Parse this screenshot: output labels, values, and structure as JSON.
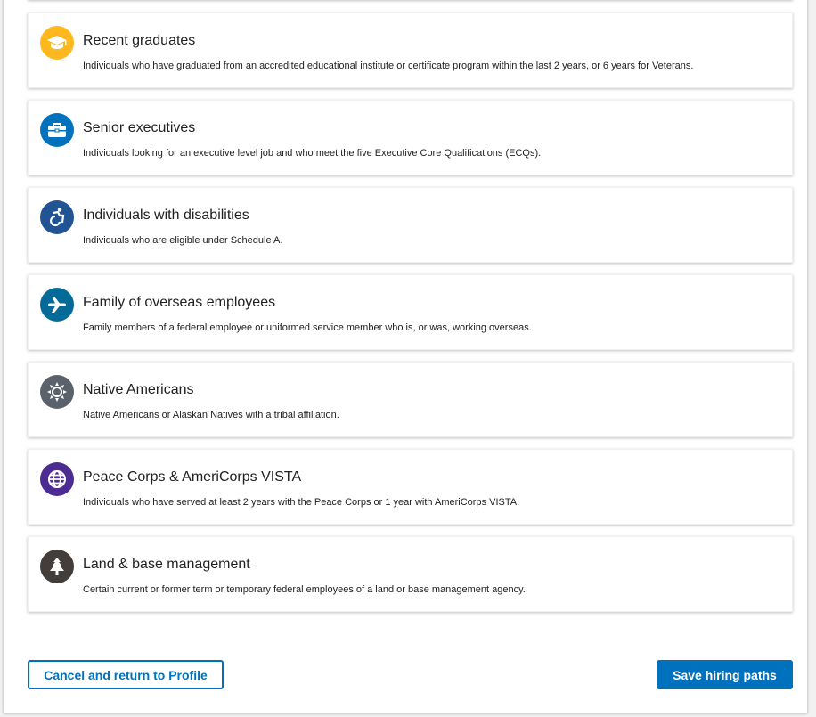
{
  "paths": [
    {
      "title": "Recent graduates",
      "description": "Individuals who have graduated from an accredited educational institute or certificate program within the last 2 years, or 6 years for Veterans.",
      "icon": "graduation-cap-icon",
      "color": "#fdb81e"
    },
    {
      "title": "Senior executives",
      "description": "Individuals looking for an executive level job and who meet the five Executive Core Qualifications (ECQs).",
      "icon": "briefcase-icon",
      "color": "#0071bc"
    },
    {
      "title": "Individuals with disabilities",
      "description": "Individuals who are eligible under Schedule A.",
      "icon": "accessibility-icon",
      "color": "#205493"
    },
    {
      "title": "Family of overseas employees",
      "description": "Family members of a federal employee or uniformed service member who is, or was, working overseas.",
      "icon": "airplane-icon",
      "color": "#046b99"
    },
    {
      "title": "Native Americans",
      "description": "Native Americans or Alaskan Natives with a tribal affiliation.",
      "icon": "sun-icon",
      "color": "#5b616b"
    },
    {
      "title": "Peace Corps & AmeriCorps VISTA",
      "description": "Individuals who have served at least 2 years with the Peace Corps or 1 year with AmeriCorps VISTA.",
      "icon": "globe-icon",
      "color": "#4c2c92"
    },
    {
      "title": "Land & base management",
      "description": "Certain current or former term or temporary federal employees of a land or base management agency.",
      "icon": "tree-icon",
      "color": "#433e3a"
    }
  ],
  "actions": {
    "cancel_label": "Cancel and return to Profile",
    "save_label": "Save hiring paths"
  }
}
